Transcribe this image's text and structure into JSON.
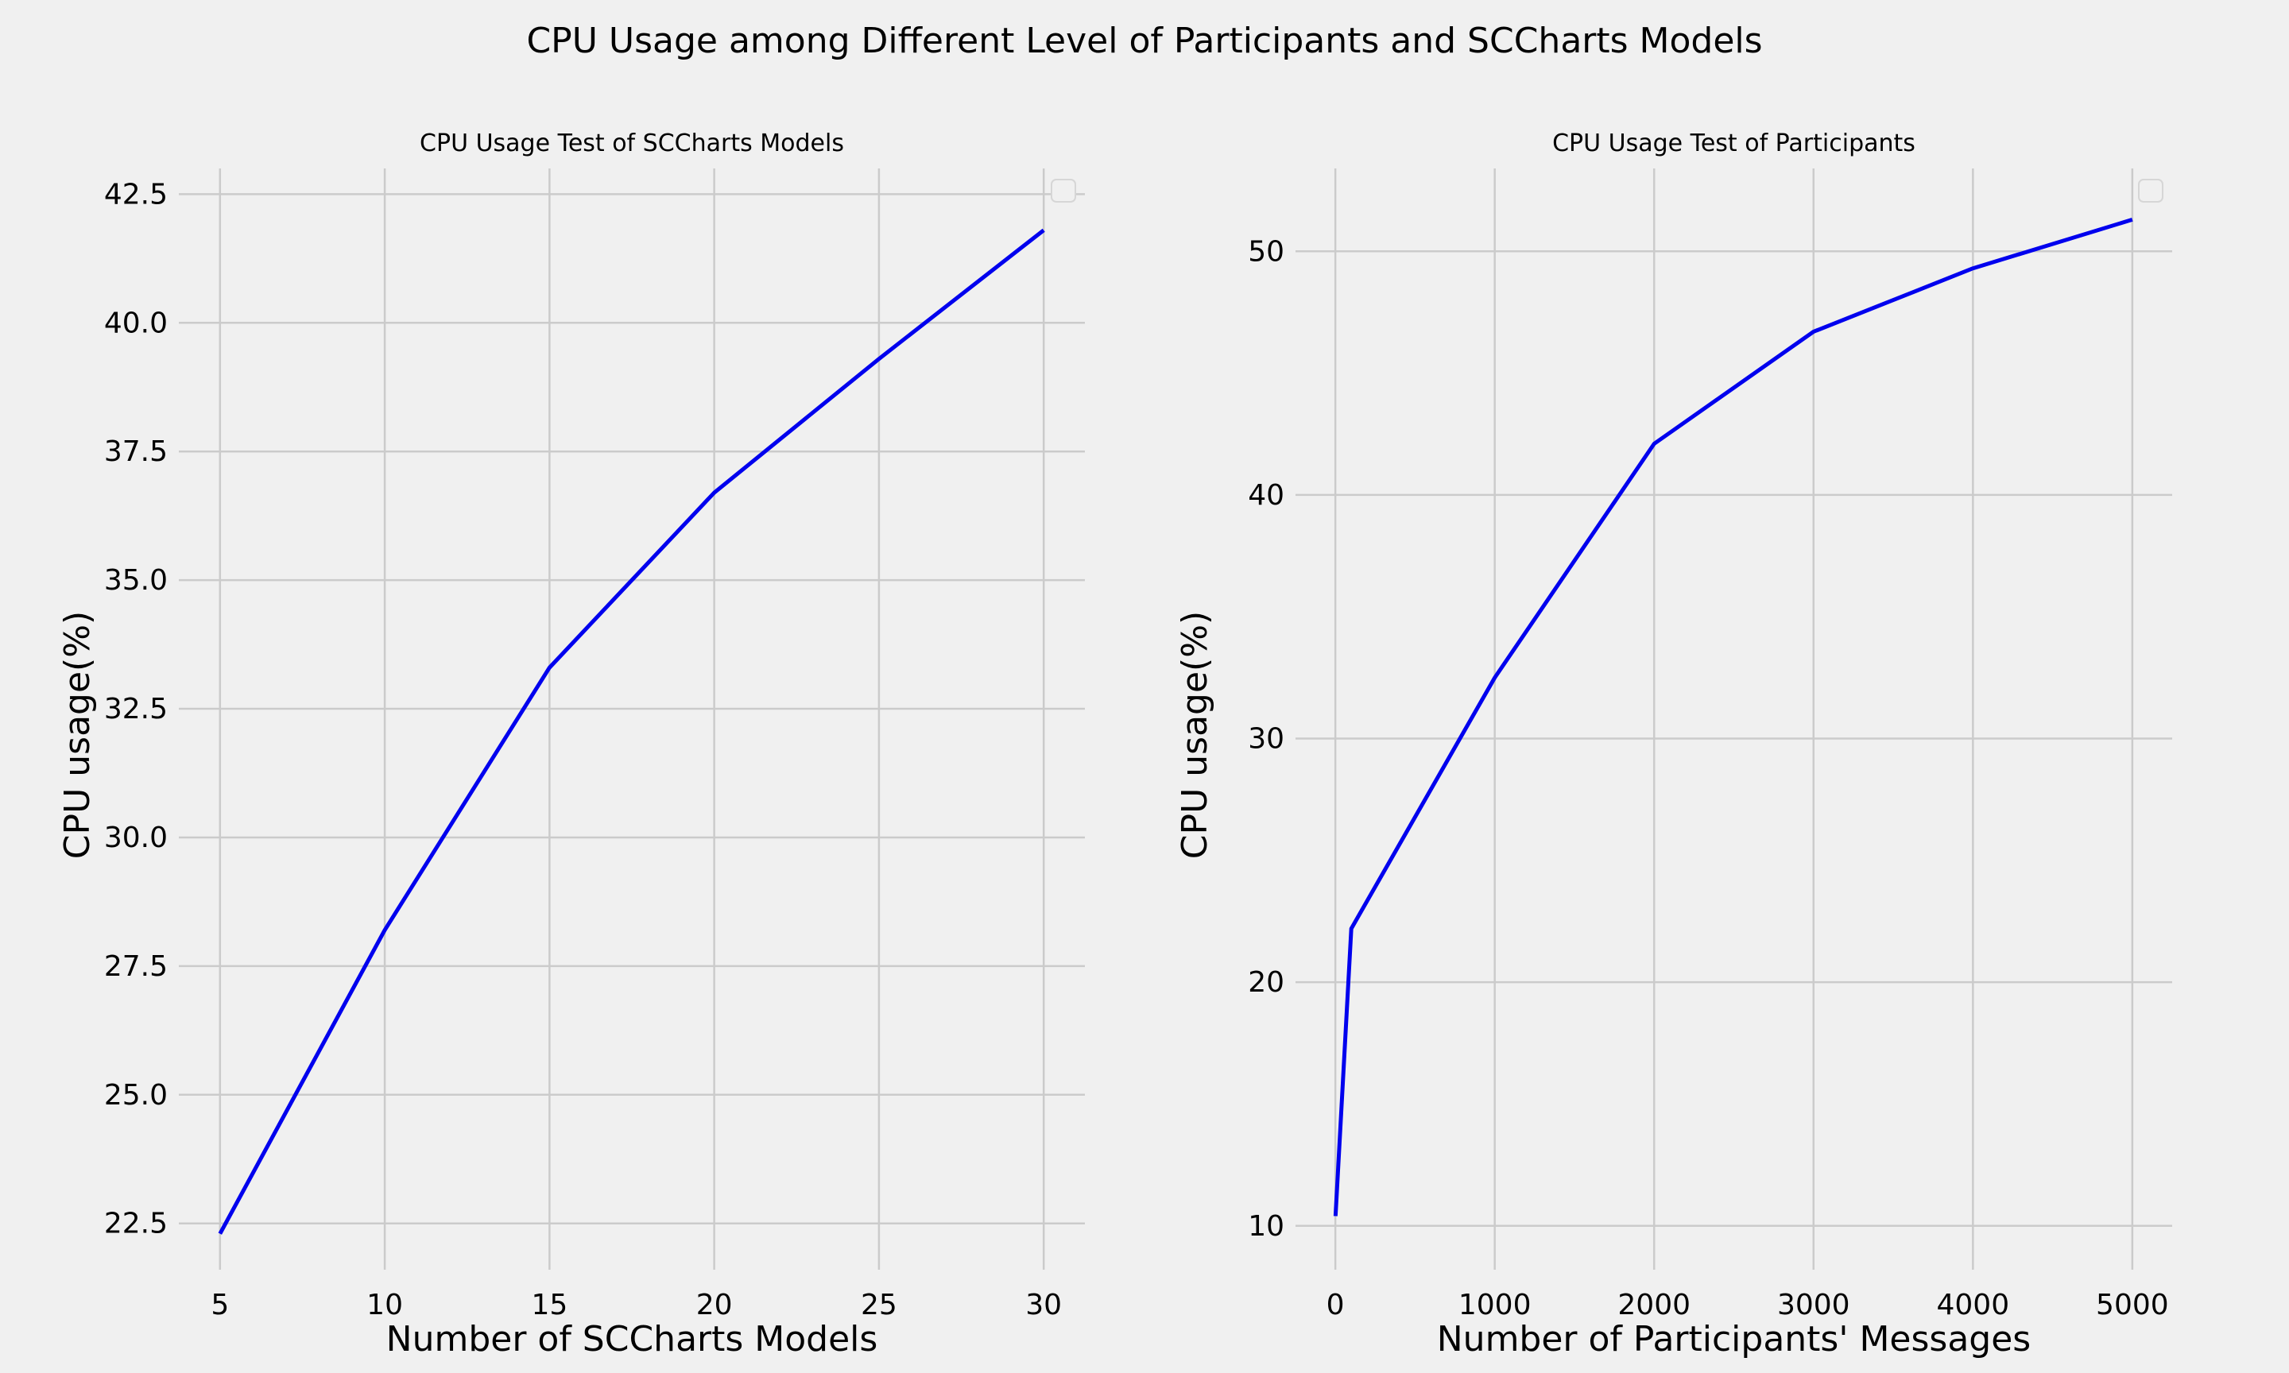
{
  "figure": {
    "suptitle": "CPU Usage among Different Level of Participants and SCCharts Models"
  },
  "chart_data": [
    {
      "type": "line",
      "title": "CPU Usage Test of SCCharts Models",
      "xlabel": "Number of SCCharts Models",
      "ylabel": "CPU usage(%)",
      "x": [
        5,
        10,
        15,
        20,
        25,
        30
      ],
      "series": [
        {
          "values": [
            22.3,
            28.2,
            33.3,
            36.7,
            39.3,
            41.8
          ],
          "color": "#0000ee"
        }
      ],
      "xlim": [
        3.75,
        31.25
      ],
      "ylim": [
        21.6,
        43.0
      ],
      "xticks": [
        5,
        10,
        15,
        20,
        25,
        30
      ],
      "xtick_labels": [
        "5",
        "10",
        "15",
        "20",
        "25",
        "30"
      ],
      "yticks": [
        22.5,
        25.0,
        27.5,
        30.0,
        32.5,
        35.0,
        37.5,
        40.0,
        42.5
      ],
      "ytick_labels": [
        "22.5",
        "25.0",
        "27.5",
        "30.0",
        "32.5",
        "35.0",
        "37.5",
        "40.0",
        "42.5"
      ],
      "grid": true,
      "legend": "upper right (empty)"
    },
    {
      "type": "line",
      "title": "CPU Usage Test of Participants",
      "xlabel": "Number of Participants' Messages",
      "ylabel": "CPU usage(%)",
      "x": [
        1,
        100,
        1000,
        2000,
        3000,
        4000,
        5000
      ],
      "series": [
        {
          "values": [
            10.4,
            22.2,
            32.5,
            42.1,
            46.7,
            49.3,
            51.3
          ],
          "color": "#0000ee"
        }
      ],
      "xlim": [
        -250,
        5250
      ],
      "ylim": [
        8.2,
        53.4
      ],
      "xticks": [
        0,
        1000,
        2000,
        3000,
        4000,
        5000
      ],
      "xtick_labels": [
        "0",
        "1000",
        "2000",
        "3000",
        "4000",
        "5000"
      ],
      "yticks": [
        10,
        20,
        30,
        40,
        50
      ],
      "ytick_labels": [
        "10",
        "20",
        "30",
        "40",
        "50"
      ],
      "grid": true,
      "legend": "upper right (empty)"
    }
  ]
}
